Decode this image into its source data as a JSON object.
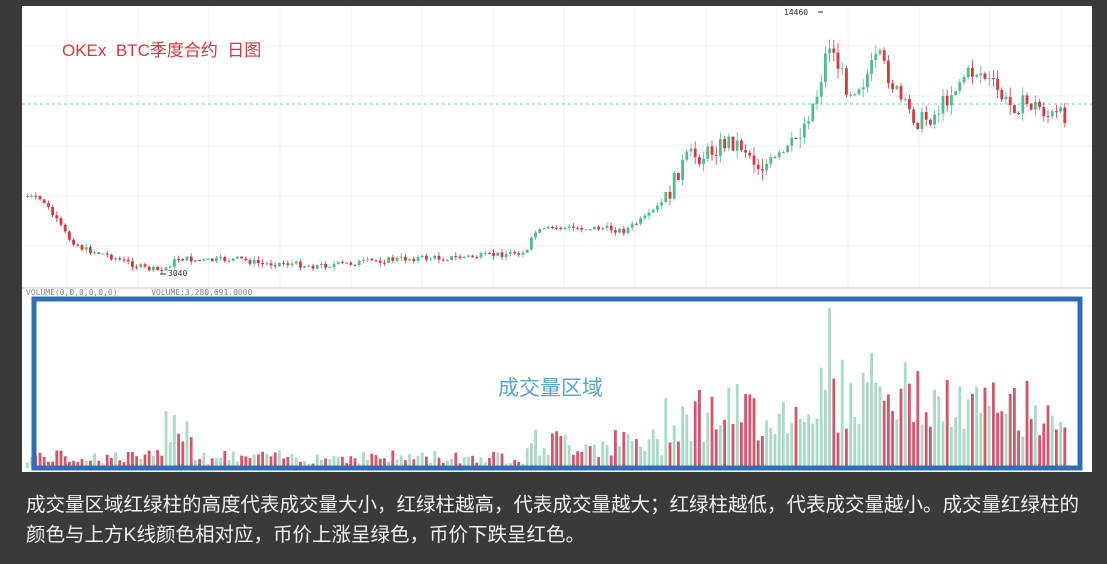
{
  "title": "OKEx  BTC季度合约  日图",
  "volume_legend": "VOLUME(0,0,0,0,0,0)       VOLUME:3,280,691.0000",
  "volume_area_label": "成交量区域",
  "caption": "成交量区域红绿柱的高度代表成交量大小，红绿柱越高，代表成交量越大；红绿柱越低，代表成交量越小。成交量红绿柱的颜色与上方K线颜色相对应，币价上涨呈绿色，币价下跌呈红色。",
  "colors": {
    "up": "#4dbf8e",
    "down": "#d9363e",
    "volume_up": "#a8dcc4",
    "volume_down": "#d9536a",
    "highlight_box": "#2f6db5",
    "reference_line": "#6fd1b4"
  },
  "chart_data": {
    "type": "candlestick",
    "series": "BTC季度合约",
    "high_label": "14460",
    "low_label": "3040",
    "price_range": [
      3040,
      14460
    ],
    "grid": true
  }
}
